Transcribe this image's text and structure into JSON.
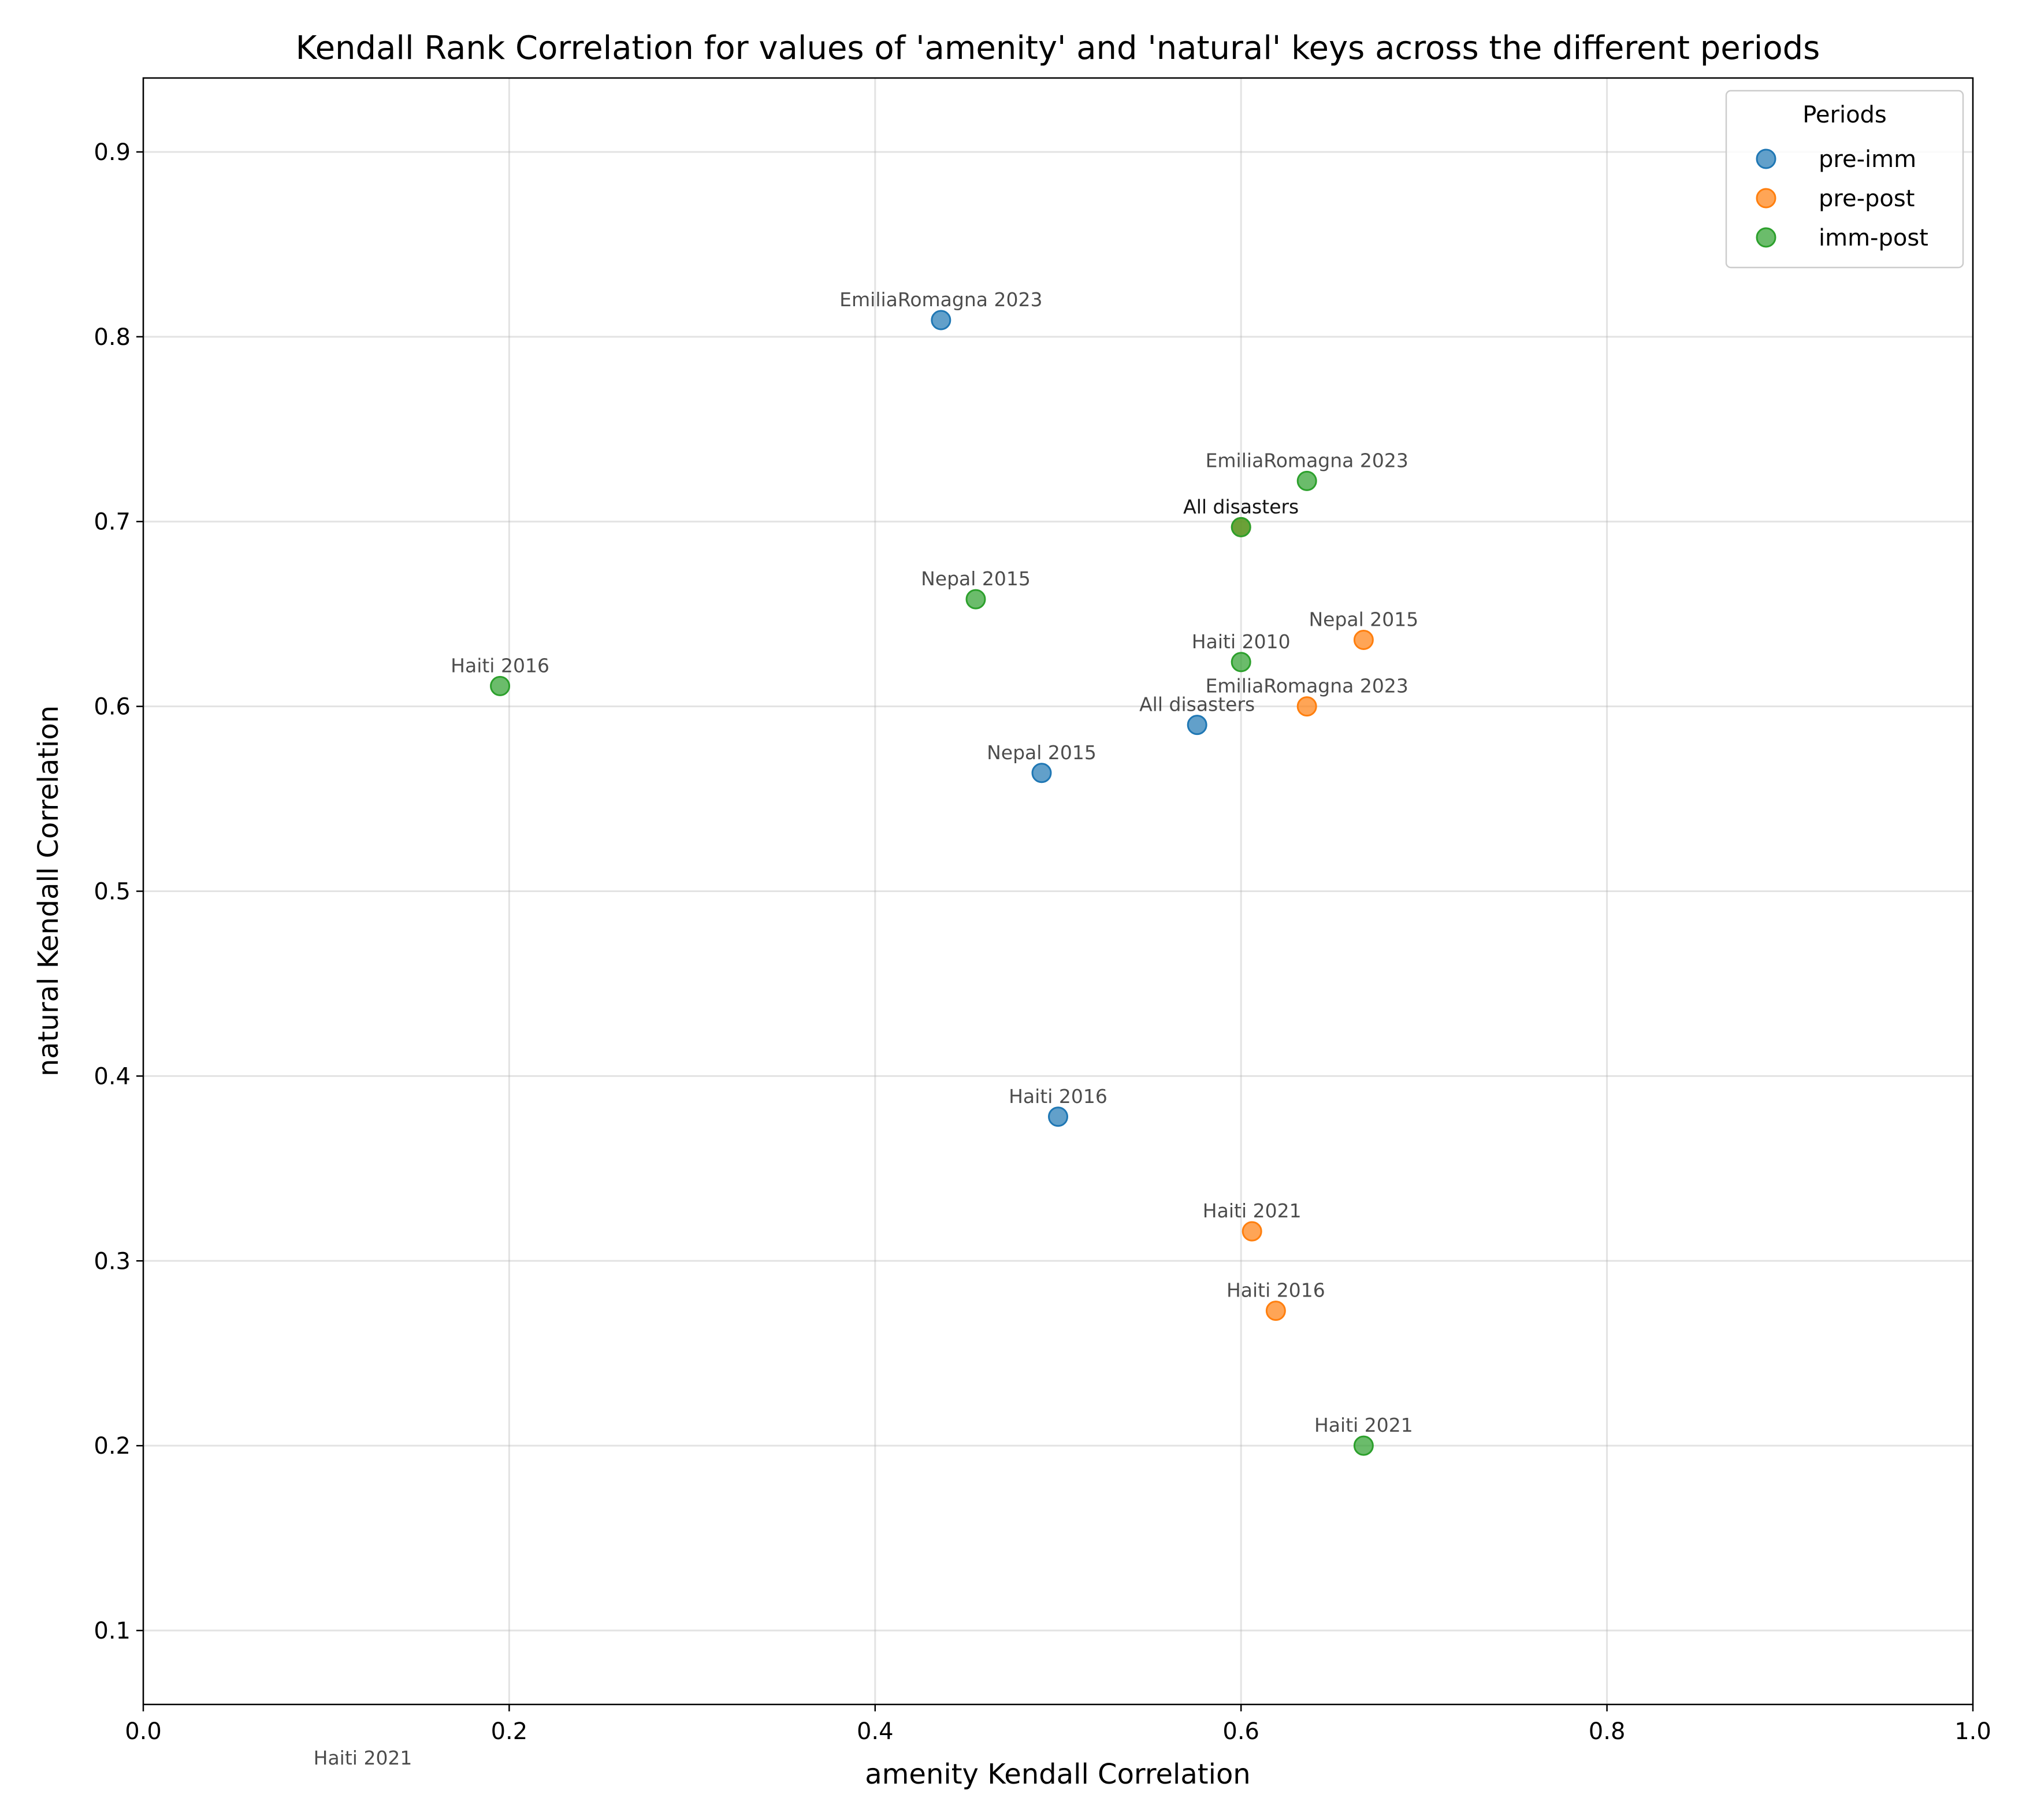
{
  "chart_data": {
    "type": "scatter",
    "title": "Kendall Rank Correlation for values of 'amenity' and 'natural' keys across the different periods",
    "xlabel": "amenity Kendall Correlation",
    "ylabel": "natural Kendall Correlation",
    "xlim": [
      0.0,
      1.0
    ],
    "ylim": [
      0.06,
      0.94
    ],
    "xticks": [
      "0.0",
      "0.2",
      "0.4",
      "0.6",
      "0.8",
      "1.0"
    ],
    "yticks": [
      "0.1",
      "0.2",
      "0.3",
      "0.4",
      "0.5",
      "0.6",
      "0.7",
      "0.8",
      "0.9"
    ],
    "grid": true,
    "legend": {
      "title": "Periods",
      "placement": "top-right"
    },
    "series": [
      {
        "name": "pre-imm",
        "color": "#1f77b4",
        "points": [
          {
            "label": "EmiliaRomagna 2023",
            "x": 0.436,
            "y": 0.809
          },
          {
            "label": "Nepal 2015",
            "x": 0.491,
            "y": 0.564
          },
          {
            "label": "Haiti 2016",
            "x": 0.5,
            "y": 0.378
          },
          {
            "label": "All disasters",
            "x": 0.576,
            "y": 0.59
          },
          {
            "label": "Haiti 2021",
            "x": 0.12,
            "y": 0.02
          }
        ]
      },
      {
        "name": "pre-post",
        "color": "#ff7f0e",
        "points": [
          {
            "label": "Nepal 2015",
            "x": 0.667,
            "y": 0.636
          },
          {
            "label": "EmiliaRomagna 2023",
            "x": 0.636,
            "y": 0.6
          },
          {
            "label": "Haiti 2021",
            "x": 0.606,
            "y": 0.316
          },
          {
            "label": "Haiti 2016",
            "x": 0.619,
            "y": 0.273
          },
          {
            "label": "All disasters",
            "x": 0.6,
            "y": 0.697
          }
        ]
      },
      {
        "name": "imm-post",
        "color": "#2ca02c",
        "points": [
          {
            "label": "EmiliaRomagna 2023",
            "x": 0.636,
            "y": 0.722
          },
          {
            "label": "All disasters",
            "x": 0.6,
            "y": 0.697
          },
          {
            "label": "Nepal 2015",
            "x": 0.455,
            "y": 0.658
          },
          {
            "label": "Haiti 2010",
            "x": 0.6,
            "y": 0.624
          },
          {
            "label": "Haiti 2016",
            "x": 0.195,
            "y": 0.611
          },
          {
            "label": "Haiti 2021",
            "x": 0.667,
            "y": 0.2
          }
        ]
      }
    ]
  }
}
